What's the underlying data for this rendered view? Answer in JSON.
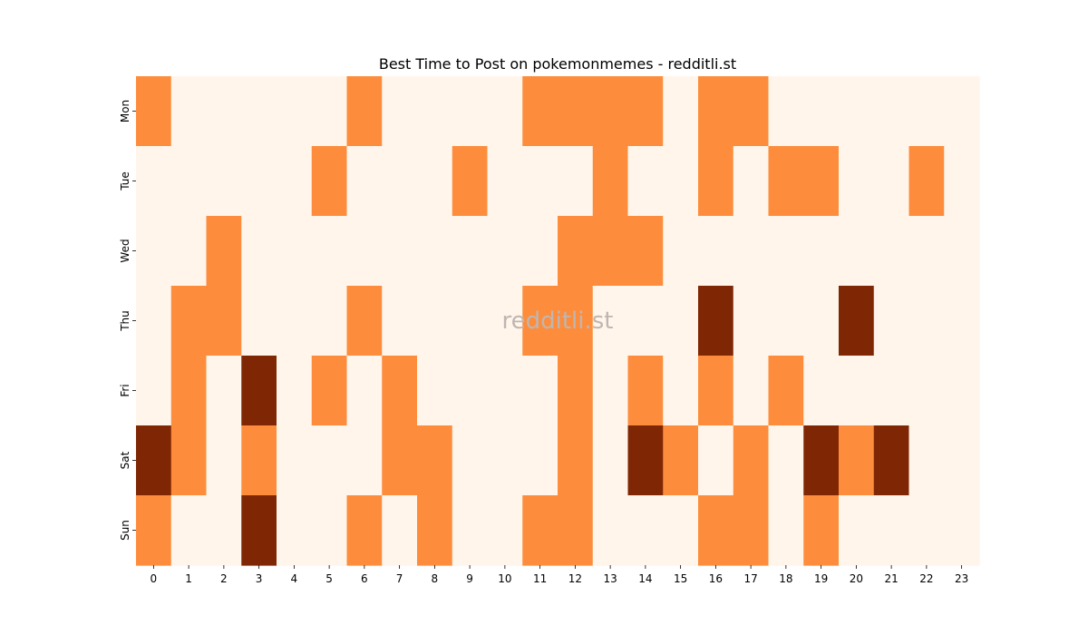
{
  "chart_data": {
    "type": "heatmap",
    "title": "Best Time to Post on pokemonmemes - redditli.st",
    "xlabel": "",
    "ylabel": "",
    "x": [
      "0",
      "1",
      "2",
      "3",
      "4",
      "5",
      "6",
      "7",
      "8",
      "9",
      "10",
      "11",
      "12",
      "13",
      "14",
      "15",
      "16",
      "17",
      "18",
      "19",
      "20",
      "21",
      "22",
      "23"
    ],
    "y": [
      "Mon",
      "Tue",
      "Wed",
      "Thu",
      "Fri",
      "Sat",
      "Sun"
    ],
    "values": [
      [
        1,
        0,
        0,
        0,
        0,
        0,
        1,
        0,
        0,
        0,
        0,
        1,
        1,
        1,
        1,
        0,
        1,
        1,
        0,
        0,
        0,
        0,
        0,
        0
      ],
      [
        0,
        0,
        0,
        0,
        0,
        1,
        0,
        0,
        0,
        1,
        0,
        0,
        0,
        1,
        0,
        0,
        1,
        0,
        1,
        1,
        0,
        0,
        1,
        0
      ],
      [
        0,
        0,
        1,
        0,
        0,
        0,
        0,
        0,
        0,
        0,
        0,
        0,
        1,
        1,
        1,
        0,
        0,
        0,
        0,
        0,
        0,
        0,
        0,
        0
      ],
      [
        0,
        1,
        1,
        0,
        0,
        0,
        1,
        0,
        0,
        0,
        0,
        1,
        1,
        0,
        0,
        0,
        2,
        0,
        0,
        0,
        2,
        0,
        0,
        0
      ],
      [
        0,
        1,
        0,
        2,
        0,
        1,
        0,
        1,
        0,
        0,
        0,
        0,
        1,
        0,
        1,
        0,
        1,
        0,
        1,
        0,
        0,
        0,
        0,
        0
      ],
      [
        2,
        1,
        0,
        1,
        0,
        0,
        0,
        1,
        1,
        0,
        0,
        0,
        1,
        0,
        2,
        1,
        0,
        1,
        0,
        2,
        1,
        2,
        0,
        0
      ],
      [
        1,
        0,
        0,
        2,
        0,
        0,
        1,
        0,
        1,
        0,
        0,
        1,
        1,
        0,
        0,
        0,
        1,
        1,
        0,
        1,
        0,
        0,
        0,
        0
      ]
    ],
    "colors": {
      "0": "#fff5eb",
      "1": "#fd8d3c",
      "2": "#7f2704"
    },
    "grid": false,
    "legend": "none"
  },
  "watermark": "redditli.st"
}
